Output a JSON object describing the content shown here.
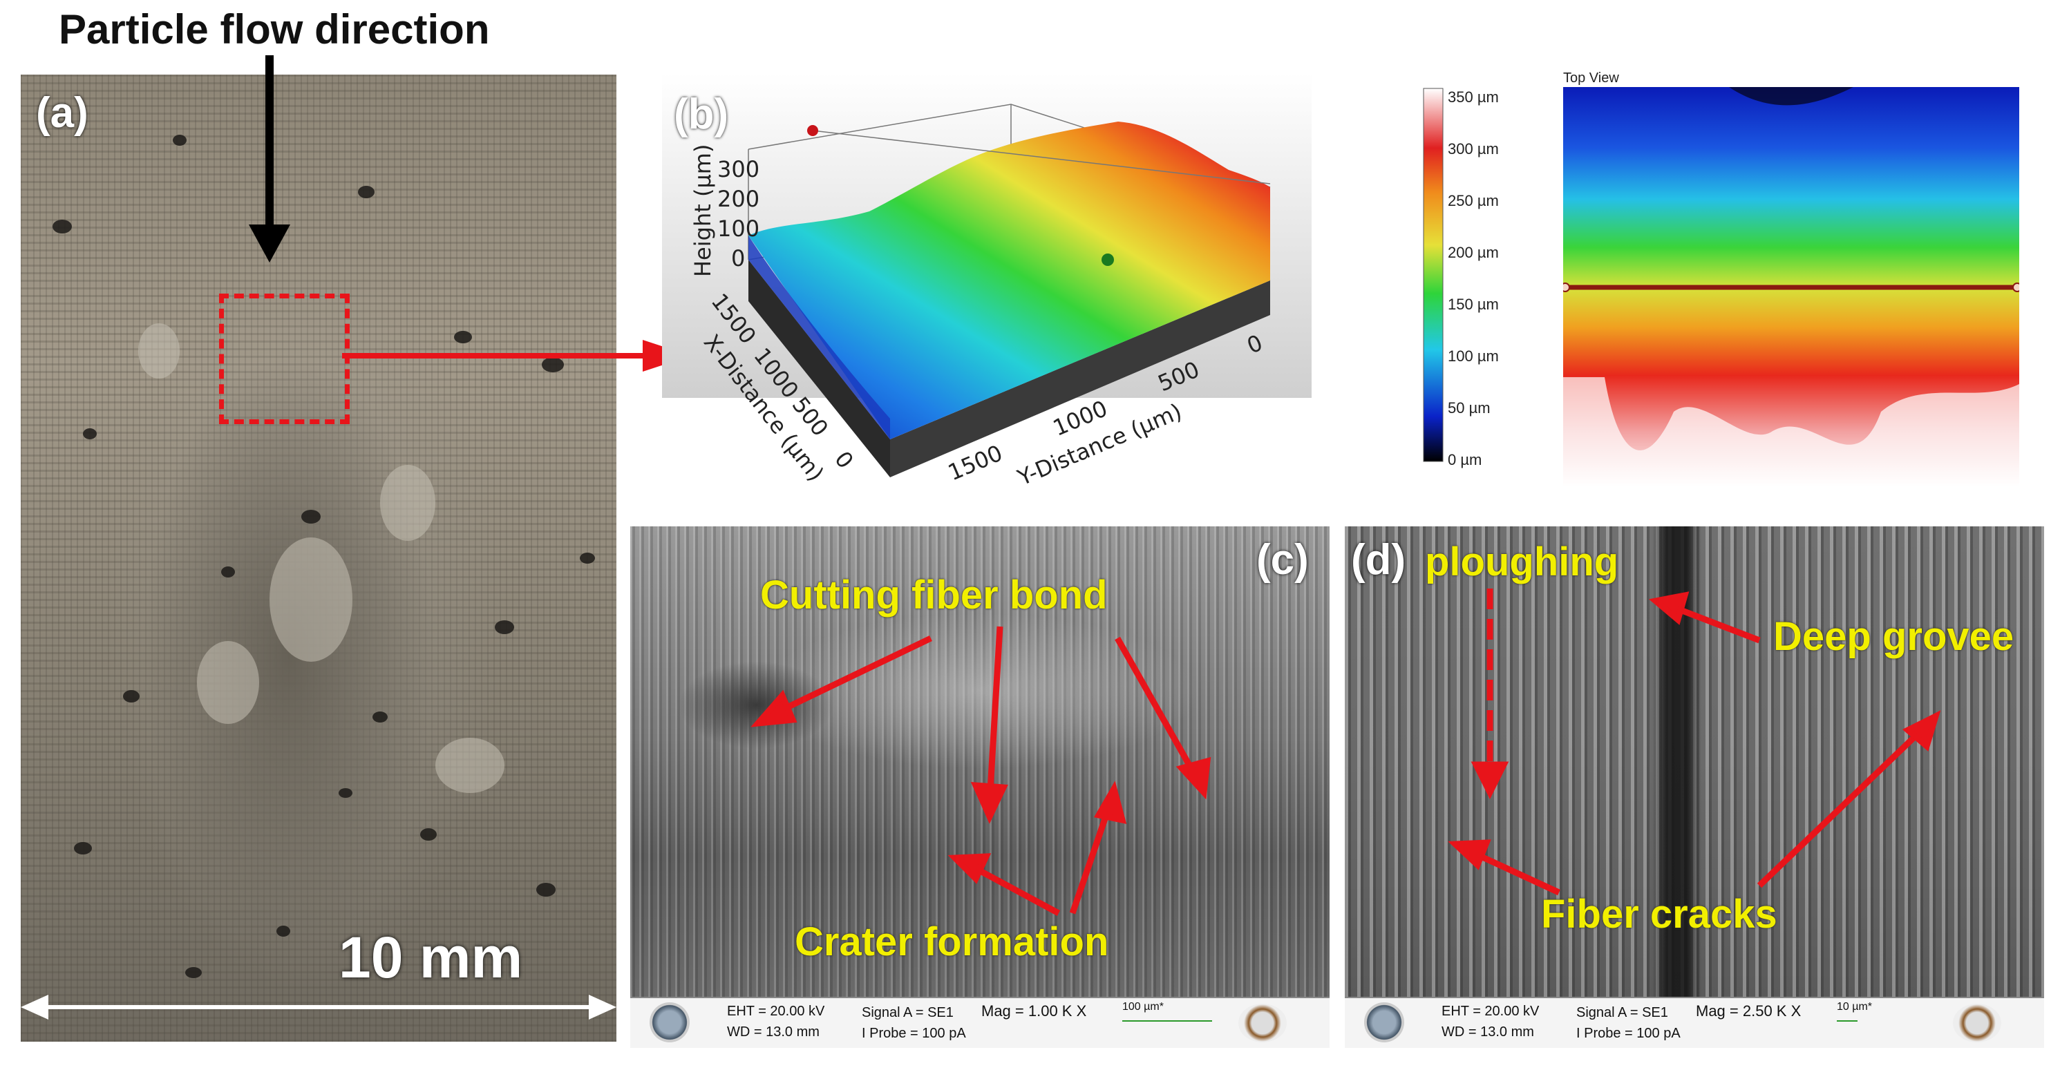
{
  "figure": {
    "top_title": "Particle flow direction",
    "scale_text": "10 mm",
    "colors": {
      "arrow_red": "#e8141a",
      "label_yellow": "#f2ef00",
      "crosshair_dark": "#8a1a10"
    }
  },
  "panel_a": {
    "letter": "(a)"
  },
  "panel_b": {
    "letter": "(b)",
    "z_axis_label": "Height (µm)",
    "z_ticks": [
      "300",
      "200",
      "100",
      "0"
    ],
    "x_axis_label": "X-Distance (µm)",
    "x_ticks": [
      "1500",
      "1000",
      "500",
      "0"
    ],
    "y_axis_label": "Y-Distance (µm)",
    "y_ticks": [
      "1500",
      "1000",
      "500",
      "0"
    ]
  },
  "colorbar": {
    "ticks": [
      "350 µm",
      "300 µm",
      "250 µm",
      "200 µm",
      "150 µm",
      "100 µm",
      "50 µm",
      "0 µm"
    ]
  },
  "top_view": {
    "title": "Top View"
  },
  "panel_c": {
    "letter": "(c)",
    "label_cutting": "Cutting fiber bond",
    "label_crater": "Crater formation",
    "sem": {
      "eht": "EHT = 20.00 kV",
      "wd": "WD = 13.0 mm",
      "signal": "Signal A = SE1",
      "probe": "I Probe =     100 pA",
      "mag": "Mag =    1.00 K X",
      "scale": "100 µm*"
    }
  },
  "panel_d": {
    "letter": "(d)",
    "label_ploughing": "ploughing",
    "label_groove": "Deep grovee",
    "label_cracks": "Fiber cracks",
    "sem": {
      "eht": "EHT = 20.00 kV",
      "wd": "WD = 13.0 mm",
      "signal": "Signal A = SE1",
      "probe": "I Probe =     100 pA",
      "mag": "Mag =   2.50 K X",
      "scale": "10 µm*"
    }
  }
}
